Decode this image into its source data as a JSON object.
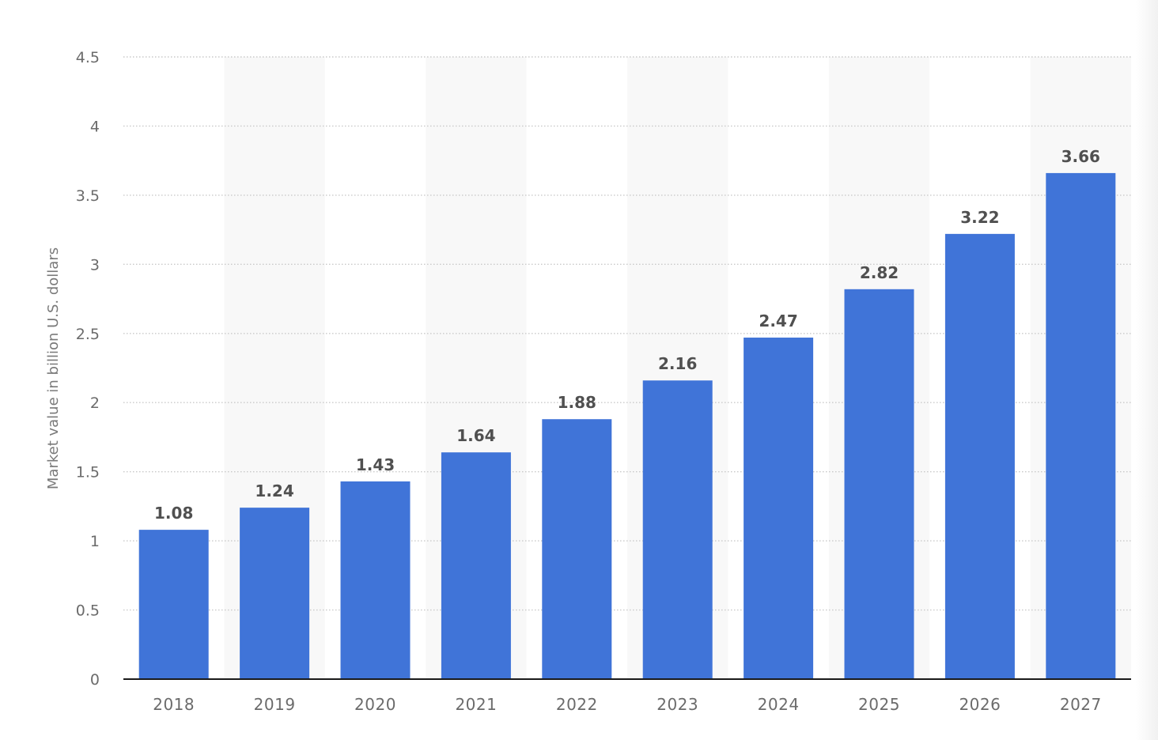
{
  "colors": {
    "bar": "#4074d8",
    "band": "#f8f8f8",
    "grid": "#c9c9c9",
    "axis": "#1a1a1a",
    "tick_text": "#6b6b6b",
    "value_text": "#505050",
    "ylabel_text": "#7a7a7a"
  },
  "chart_data": {
    "type": "bar",
    "categories": [
      "2018",
      "2019",
      "2020",
      "2021",
      "2022",
      "2023",
      "2024",
      "2025",
      "2026",
      "2027"
    ],
    "values": [
      1.08,
      1.24,
      1.43,
      1.64,
      1.88,
      2.16,
      2.47,
      2.82,
      3.22,
      3.66
    ],
    "value_labels": [
      "1.08",
      "1.24",
      "1.43",
      "1.64",
      "1.88",
      "2.16",
      "2.47",
      "2.82",
      "3.22",
      "3.66"
    ],
    "ylabel": "Market value in billion U.S. dollars",
    "ylim": [
      0,
      4.5
    ],
    "yticks": [
      0,
      0.5,
      1,
      1.5,
      2,
      2.5,
      3,
      3.5,
      4,
      4.5
    ],
    "ytick_labels": [
      "0",
      "0.5",
      "1",
      "1.5",
      "2",
      "2.5",
      "3",
      "3.5",
      "4",
      "4.5"
    ],
    "grid": true,
    "legend": "none"
  }
}
